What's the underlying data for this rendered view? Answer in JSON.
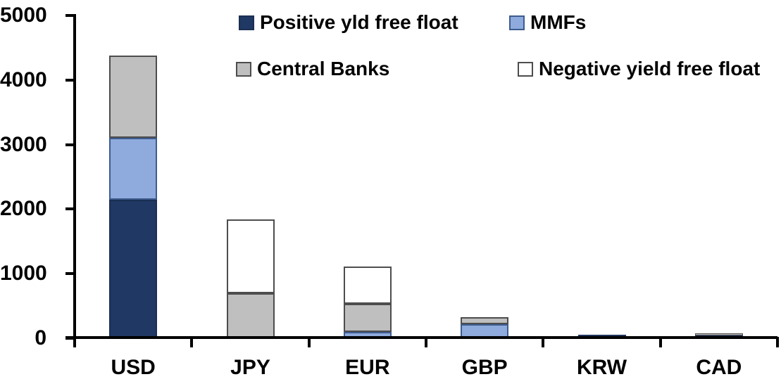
{
  "chart_data": {
    "type": "bar",
    "stacked": true,
    "title": "",
    "categories": [
      "USD",
      "JPY",
      "EUR",
      "GBP",
      "KRW",
      "CAD"
    ],
    "series": [
      {
        "name": "Positive yld free float",
        "fill": "#1F3864",
        "border": "#1B2F52",
        "values": [
          2150,
          0,
          0,
          0,
          50,
          40
        ]
      },
      {
        "name": "MMFs",
        "fill": "#8FAADC",
        "border": "#3D5C8F",
        "values": [
          950,
          0,
          100,
          220,
          0,
          0
        ]
      },
      {
        "name": "Central Banks",
        "fill": "#BFBFBF",
        "border": "#4D4D4D",
        "values": [
          1280,
          700,
          430,
          110,
          0,
          40
        ]
      },
      {
        "name": "Negative yield free float",
        "fill": "#FFFFFF",
        "border": "#4D4D4D",
        "values": [
          0,
          1140,
          580,
          0,
          0,
          0
        ]
      }
    ],
    "ylim": [
      0,
      5000
    ],
    "yticks": [
      0,
      1000,
      2000,
      3000,
      4000,
      5000
    ],
    "grid": false,
    "legend_position": "top",
    "axis_color": "#000000",
    "text_color": "#000000",
    "background_color": "#FFFFFF"
  }
}
